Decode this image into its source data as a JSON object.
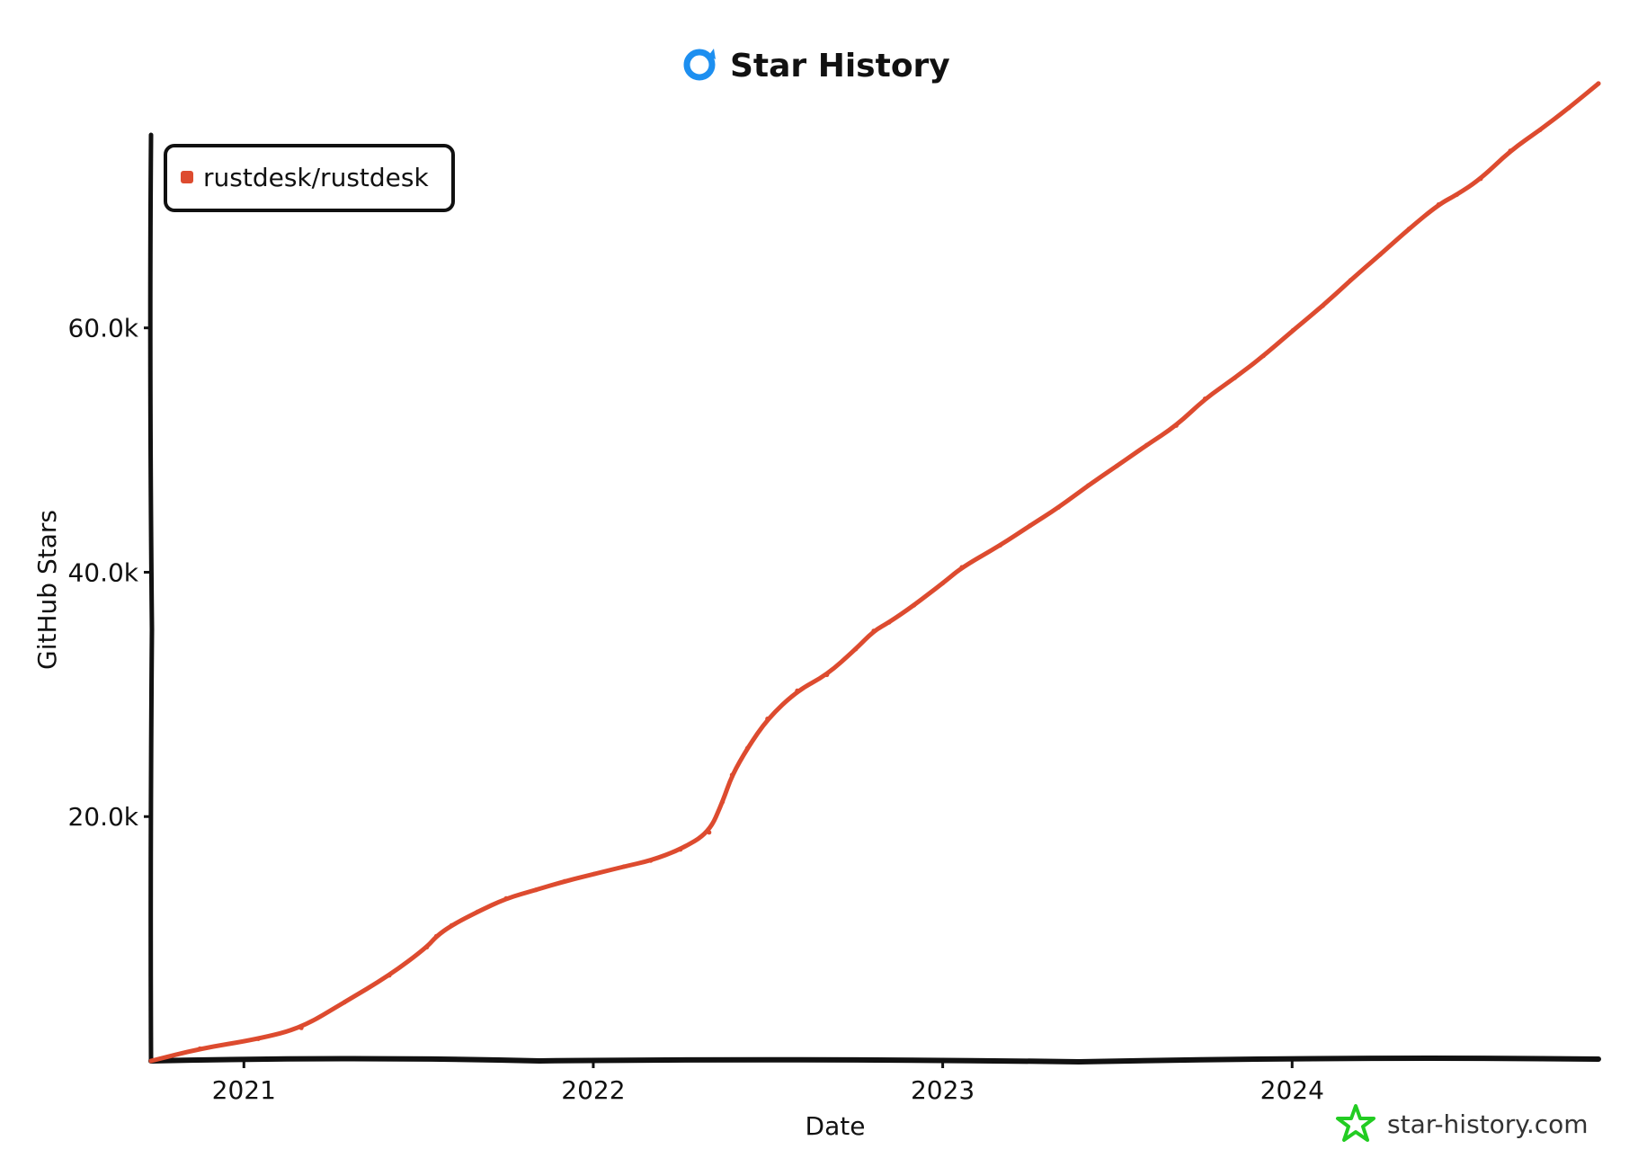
{
  "header": {
    "title": "Star History",
    "logo_icon": "star-history-logo-icon",
    "logo_color": "#1d8ff0"
  },
  "footer": {
    "brand": "star-history.com",
    "brand_icon": "star-icon",
    "brand_icon_color": "#22cc22"
  },
  "chart_data": {
    "type": "line",
    "title": "Star History",
    "xlabel": "Date",
    "ylabel": "GitHub Stars",
    "x_type": "date",
    "xlim": [
      "2020-09-25",
      "2024-11-15"
    ],
    "ylim": [
      0,
      75800
    ],
    "x_ticks": [
      {
        "label": "2021",
        "value": "2020-12-31"
      },
      {
        "label": "2022",
        "value": "2021-12-31"
      },
      {
        "label": "2023",
        "value": "2022-12-31"
      },
      {
        "label": "2024",
        "value": "2023-12-31"
      }
    ],
    "y_ticks": [
      {
        "label": "20.0k",
        "value": 20000
      },
      {
        "label": "40.0k",
        "value": 40000
      },
      {
        "label": "60.0k",
        "value": 60000
      }
    ],
    "grid": false,
    "legend": {
      "position": "top-left"
    },
    "series": [
      {
        "name": "rustdesk/rustdesk",
        "color": "#dd4b2f",
        "x": [
          "2020-09-25",
          "2020-11-15",
          "2021-01-15",
          "2021-03-01",
          "2021-04-15",
          "2021-06-01",
          "2021-07-10",
          "2021-07-20",
          "2021-08-05",
          "2021-09-01",
          "2021-10-01",
          "2021-11-01",
          "2021-12-01",
          "2022-01-01",
          "2022-02-01",
          "2022-03-01",
          "2022-04-01",
          "2022-05-01",
          "2022-05-15",
          "2022-05-25",
          "2022-06-10",
          "2022-07-01",
          "2022-08-01",
          "2022-09-01",
          "2022-10-01",
          "2022-10-20",
          "2022-11-05",
          "2022-12-01",
          "2022-12-31",
          "2023-01-20",
          "2023-03-01",
          "2023-04-01",
          "2023-05-01",
          "2023-06-01",
          "2023-07-01",
          "2023-08-01",
          "2023-09-01",
          "2023-10-01",
          "2023-11-01",
          "2023-12-01",
          "2024-01-01",
          "2024-02-01",
          "2024-03-01",
          "2024-04-01",
          "2024-05-01",
          "2024-06-01",
          "2024-06-20",
          "2024-07-15",
          "2024-08-15",
          "2024-09-15",
          "2024-10-15",
          "2024-11-15"
        ],
        "values": [
          0,
          1000,
          1800,
          2700,
          4800,
          7000,
          9300,
          10200,
          11100,
          12200,
          13300,
          14000,
          14700,
          15300,
          15900,
          16400,
          17300,
          18700,
          21200,
          23400,
          25600,
          28000,
          30300,
          31600,
          33700,
          35200,
          35900,
          37300,
          39100,
          40400,
          42200,
          43800,
          45300,
          47100,
          48700,
          50400,
          52000,
          54200,
          55900,
          57700,
          59800,
          61800,
          63900,
          66000,
          68100,
          70100,
          70900,
          72200,
          74500,
          76200,
          78000,
          80000
        ]
      }
    ]
  }
}
